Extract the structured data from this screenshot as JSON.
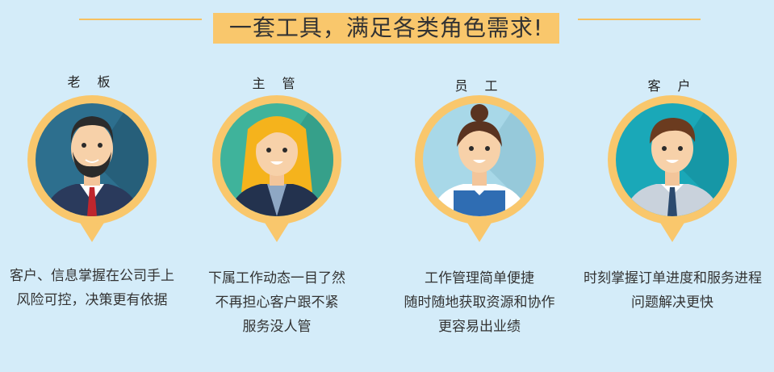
{
  "title": "一套工具，满足各类角色需求!",
  "roles": [
    {
      "name": "老 板",
      "lines": [
        "客户、信息掌握在公司手上",
        "风险可控，决策更有依据"
      ],
      "avatar": "boss-avatar-icon",
      "bg": "#2d6f8e"
    },
    {
      "name": "主 管",
      "lines": [
        "下属工作动态一目了然",
        "不再担心客户跟不紧",
        "服务没人管"
      ],
      "avatar": "manager-avatar-icon",
      "bg": "#3fb39b"
    },
    {
      "name": "员 工",
      "lines": [
        "工作管理简单便捷",
        "随时随地获取资源和协作",
        "更容易出业绩"
      ],
      "avatar": "employee-avatar-icon",
      "bg": "#a8d8e8"
    },
    {
      "name": "客 户",
      "lines": [
        "时刻掌握订单进度和服务进程",
        "问题解决更快"
      ],
      "avatar": "customer-avatar-icon",
      "bg": "#1aa8b8"
    }
  ],
  "colors": {
    "ring": "#f9c76c",
    "background": "#d4ecf9"
  }
}
